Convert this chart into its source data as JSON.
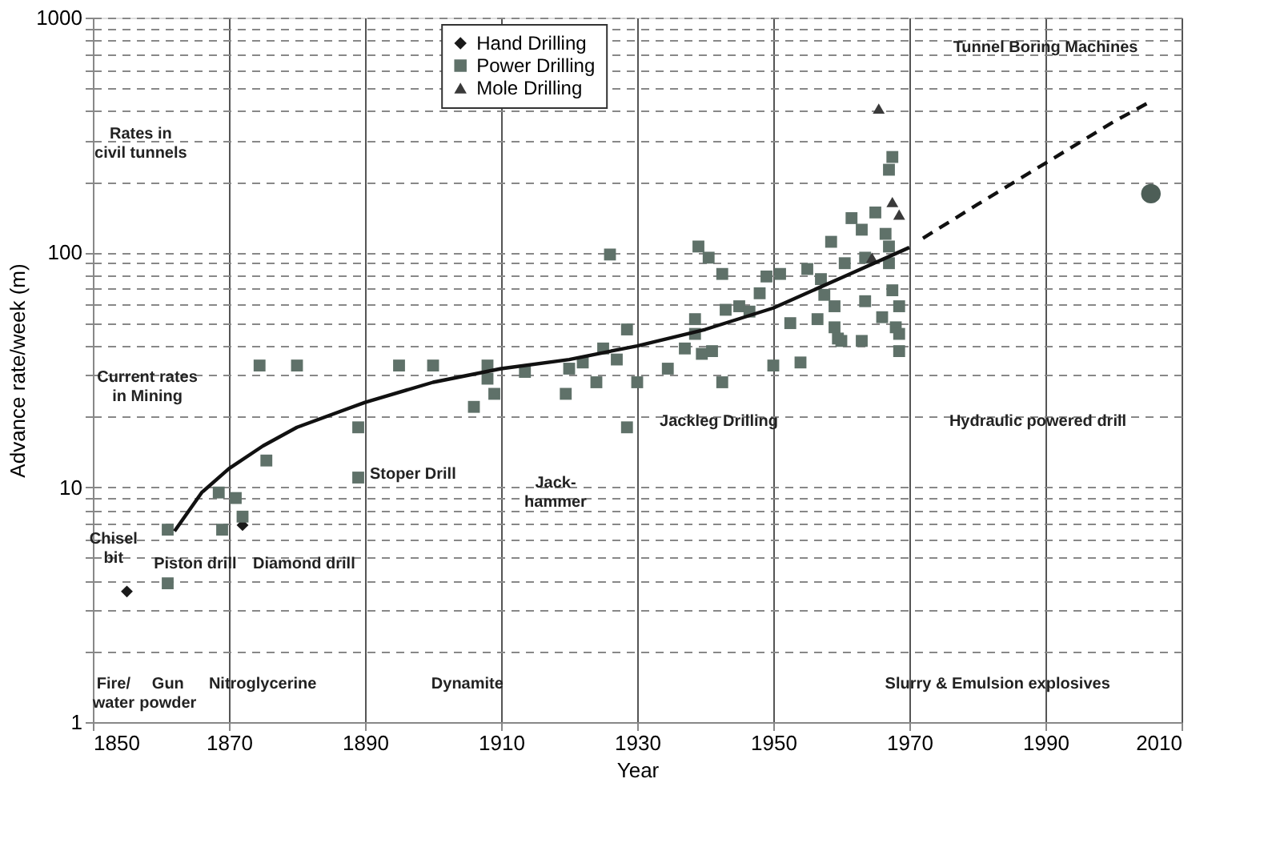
{
  "chart_data": {
    "type": "scatter",
    "xlabel": "Year",
    "ylabel": "Advance rate/week (m)",
    "log": "y",
    "xlim": [
      1850,
      2010
    ],
    "xticks": [
      1850,
      1870,
      1890,
      1910,
      1930,
      1950,
      1970,
      1990,
      2010
    ],
    "ylim": [
      1,
      1000
    ],
    "yticks": [
      1,
      {
        "value": 2,
        "label": null
      },
      {
        "value": 3,
        "label": null
      },
      {
        "value": 4,
        "label": null
      },
      {
        "value": 5,
        "label": null
      },
      {
        "value": 6,
        "label": null
      },
      {
        "value": 7,
        "label": null
      },
      {
        "value": 8,
        "label": null
      },
      {
        "value": 9,
        "label": null
      },
      10,
      {
        "value": 20,
        "label": null
      },
      {
        "value": 30,
        "label": null
      },
      {
        "value": 40,
        "label": null
      },
      {
        "value": 50,
        "label": null
      },
      {
        "value": 60,
        "label": null
      },
      {
        "value": 70,
        "label": null
      },
      {
        "value": 80,
        "label": null
      },
      {
        "value": 90,
        "label": null
      },
      100,
      {
        "value": 200,
        "label": null
      },
      {
        "value": 300,
        "label": null
      },
      {
        "value": 400,
        "label": null
      },
      {
        "value": 500,
        "label": null
      },
      {
        "value": 600,
        "label": null
      },
      {
        "value": 700,
        "label": null
      },
      {
        "value": 800,
        "label": null
      },
      {
        "value": 900,
        "label": null
      },
      1000
    ],
    "grid": true,
    "legend": "top",
    "series": [
      {
        "name": "Hand Drilling",
        "marker": "diamond",
        "color": "#1a1a1a",
        "x": [
          1855,
          1872
        ],
        "values": [
          3.6,
          6.9
        ]
      },
      {
        "name": "Power Drilling",
        "marker": "square",
        "color": "#5f7169",
        "x": [
          1861,
          1861,
          1868.5,
          1871,
          1872,
          1869,
          1875.5,
          1889,
          1889,
          1906,
          1909,
          1874.5,
          1880,
          1895,
          1900,
          1908,
          1908,
          1913.5,
          1920,
          1922,
          1919.5,
          1924,
          1926,
          1928.5,
          1927,
          1930,
          1928.5,
          1925,
          1934.5,
          1939,
          1940.5,
          1942.5,
          1938.5,
          1938.5,
          1937,
          1939.5,
          1941,
          1943,
          1942.5,
          1945,
          1946.5,
          1948,
          1949,
          1951,
          1950,
          1954,
          1952.5,
          1955,
          1957,
          1957.5,
          1958.5,
          1959,
          1956.5,
          1959,
          1959.5,
          1960.5,
          1961.5,
          1963,
          1963.5,
          1960,
          1963,
          1963.5,
          1965,
          1966.5,
          1967,
          1967,
          1966,
          1967.5,
          1968.5,
          1968,
          1968.5,
          1968.5,
          1967,
          1967.5
        ],
        "values": [
          6.6,
          3.9,
          9.5,
          9,
          7.5,
          6.6,
          13,
          18,
          11,
          22,
          25,
          33,
          33,
          33,
          33,
          33,
          29,
          31,
          32,
          34,
          25,
          28,
          98,
          47,
          35,
          28,
          18,
          39,
          32,
          106,
          95,
          81,
          52,
          45,
          39,
          37,
          38,
          57,
          28,
          59,
          56,
          67,
          79,
          81,
          33,
          34,
          50,
          85,
          77,
          66,
          111,
          59,
          52,
          48,
          43,
          90,
          140,
          125,
          62,
          42,
          42,
          95,
          148,
          120,
          106,
          90,
          53,
          69,
          59,
          48,
          45,
          38,
          225,
          255
        ]
      },
      {
        "name": "Mole Drilling",
        "marker": "triangle",
        "color": "#3a3a3a",
        "x": [
          1965.5,
          1967.5,
          1968.5,
          1964.5
        ],
        "values": [
          410,
          164,
          145,
          95
        ]
      },
      {
        "marker": "circle",
        "color": "#4d5e57",
        "x": [
          2005.5
        ],
        "values": [
          178
        ]
      },
      {
        "type": "line",
        "marker": "none",
        "line_style": "solid",
        "color": "#111111",
        "x": [
          1862,
          1866,
          1870,
          1875,
          1880,
          1890,
          1900,
          1910,
          1920,
          1930,
          1940,
          1950,
          1960,
          1970
        ],
        "values": [
          6.5,
          9.5,
          12,
          15,
          18,
          23,
          28,
          32,
          35,
          40,
          47,
          58,
          78,
          105
        ]
      },
      {
        "type": "line",
        "marker": "none",
        "line_style": "dashed",
        "color": "#111111",
        "x": [
          1972,
          1980,
          1990,
          2000,
          2005.5
        ],
        "values": [
          115,
          160,
          240,
          360,
          440
        ]
      }
    ],
    "annotations": [
      "Rates in\ncivil tunnels",
      "Current rates\nin Mining",
      "Tunnel Boring Machines",
      "Chisel\nbit",
      "Piston drill",
      "Diamond drill",
      "Stoper Drill",
      "Jack-\nhammer",
      "Jackleg Drilling",
      "Hydraulic powered drill",
      "Fire/\nwater",
      "Gun\npowder",
      "Nitroglycerine",
      "Dynamite",
      "Slurry & Emulsion explosives"
    ]
  }
}
